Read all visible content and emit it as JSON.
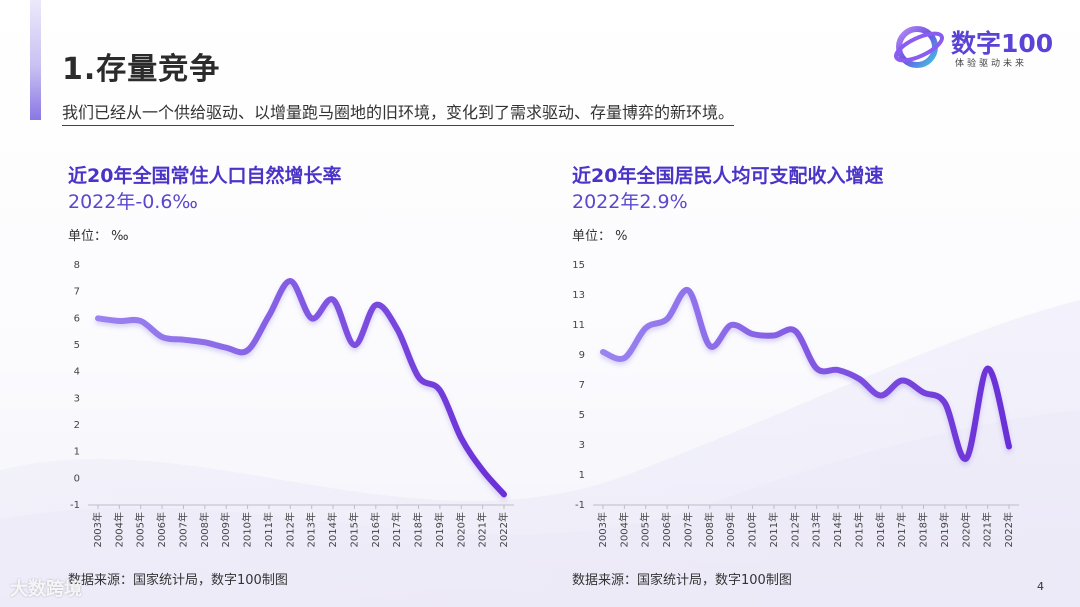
{
  "header": {
    "title": "1.存量竞争",
    "subtitle": "我们已经从一个供给驱动、以增量跑马圈地的旧环境，变化到了需求驱动、存量博弈的新环境。"
  },
  "logo": {
    "name": "数字100",
    "tagline": "体验驱动未来"
  },
  "page_number": "4",
  "watermark": "大数跨境",
  "colors": {
    "accent": "#6b52e0",
    "line_start": "#9a84f0",
    "line_end": "#6a2fd6",
    "title": "#4a34c8"
  },
  "charts": [
    {
      "title": "近20年全国常住人口自然增长率",
      "value": "2022年-0.6‰",
      "unit": "单位： ‰",
      "source": "数据来源：国家统计局，数字100制图"
    },
    {
      "title": "近20年全国居民人均可支配收入增速",
      "value": "2022年2.9%",
      "unit": "单位： %",
      "source": "数据来源：国家统计局，数字100制图"
    }
  ],
  "chart_data": [
    {
      "type": "line",
      "title": "近20年全国常住人口自然增长率",
      "categories": [
        "2003年",
        "2004年",
        "2005年",
        "2006年",
        "2007年",
        "2008年",
        "2009年",
        "2010年",
        "2011年",
        "2012年",
        "2013年",
        "2014年",
        "2015年",
        "2016年",
        "2017年",
        "2018年",
        "2019年",
        "2020年",
        "2021年",
        "2022年"
      ],
      "values": [
        6.0,
        5.9,
        5.9,
        5.3,
        5.2,
        5.1,
        4.9,
        4.8,
        6.1,
        7.4,
        6.0,
        6.7,
        5.0,
        6.5,
        5.6,
        3.8,
        3.3,
        1.5,
        0.3,
        -0.6
      ],
      "yticks": [
        "-1",
        "0",
        "1",
        "2",
        "3",
        "4",
        "5",
        "6",
        "7",
        "8"
      ],
      "ylim": [
        -1,
        8
      ],
      "grid": false
    },
    {
      "type": "line",
      "title": "近20年全国居民人均可支配收入增速",
      "categories": [
        "2003年",
        "2004年",
        "2005年",
        "2006年",
        "2007年",
        "2008年",
        "2009年",
        "2010年",
        "2011年",
        "2012年",
        "2013年",
        "2014年",
        "2015年",
        "2016年",
        "2017年",
        "2018年",
        "2019年",
        "2020年",
        "2021年",
        "2022年"
      ],
      "values": [
        9.2,
        8.8,
        10.8,
        11.4,
        13.3,
        9.6,
        11.0,
        10.4,
        10.3,
        10.6,
        8.1,
        8.0,
        7.4,
        6.3,
        7.3,
        6.5,
        5.8,
        2.1,
        8.1,
        2.9
      ],
      "yticks": [
        "-1",
        "1",
        "3",
        "5",
        "7",
        "9",
        "11",
        "13",
        "15"
      ],
      "ylim": [
        -1,
        15
      ],
      "grid": false
    }
  ]
}
